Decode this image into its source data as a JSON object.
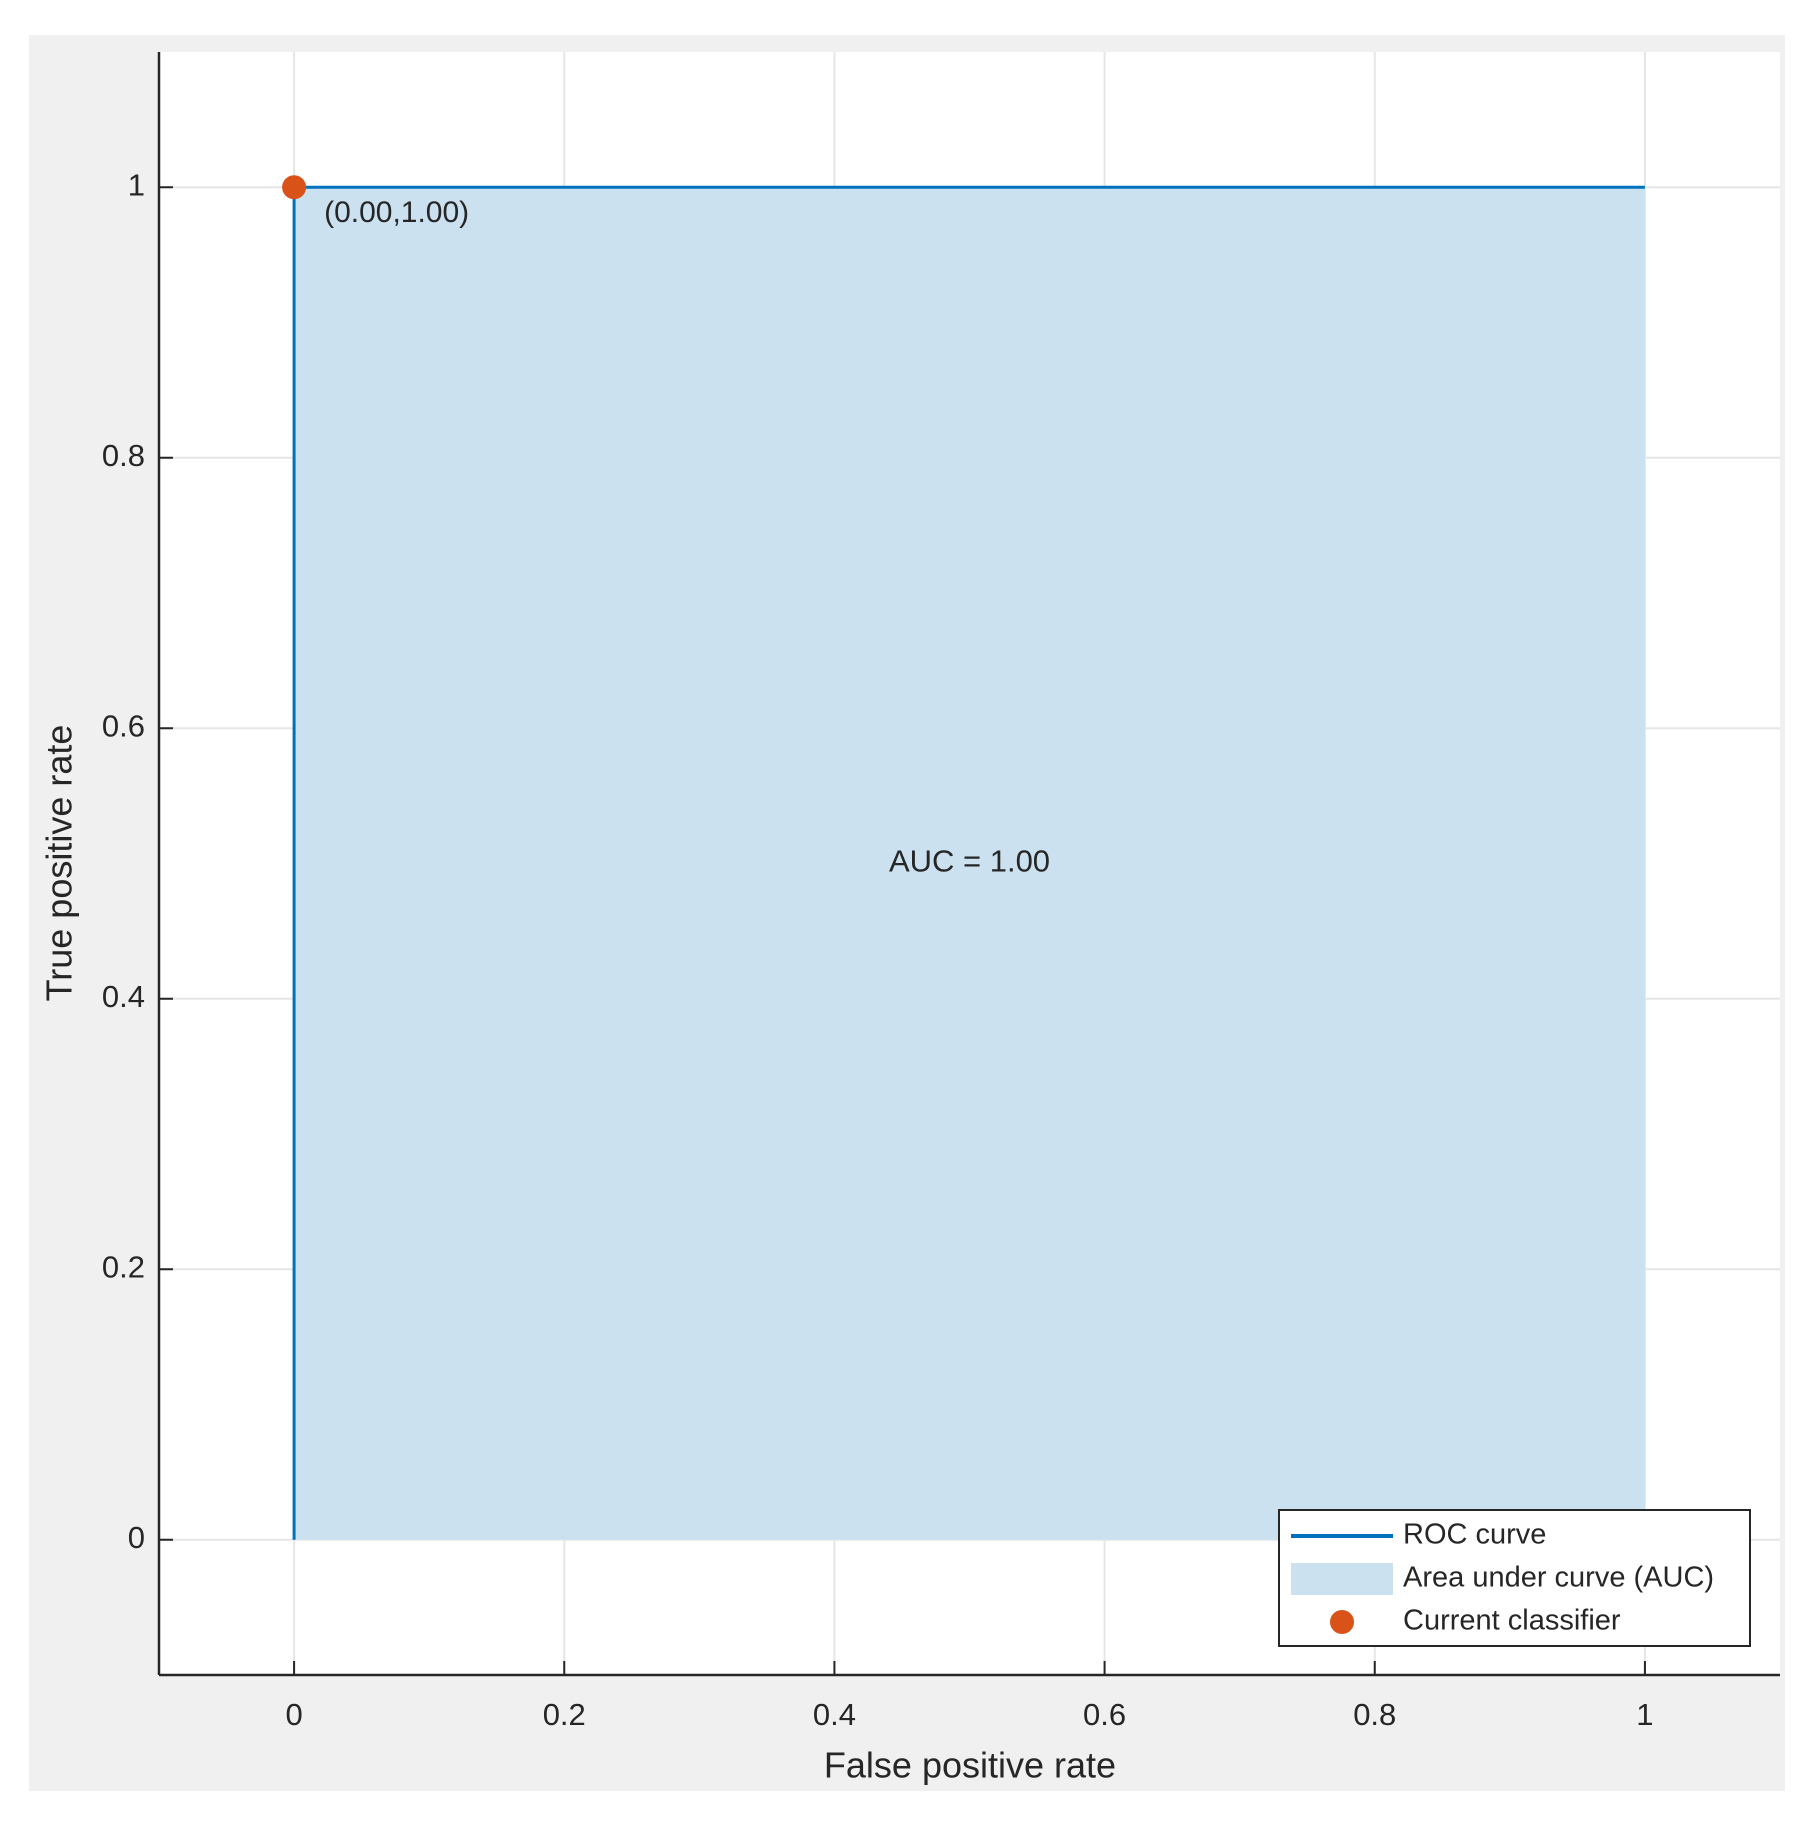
{
  "chart_data": {
    "type": "line",
    "xlabel": "False positive rate",
    "ylabel": "True positive rate",
    "xlim": [
      -0.1,
      1.1
    ],
    "ylim": [
      -0.1,
      1.1
    ],
    "xticks": [
      0,
      0.2,
      0.4,
      0.6,
      0.8,
      1
    ],
    "yticks": [
      0,
      0.2,
      0.4,
      0.6,
      0.8,
      1
    ],
    "grid": true,
    "legend": "southeast",
    "series": [
      {
        "name": "ROC curve",
        "color": "#0072bd",
        "x": [
          0,
          0,
          1
        ],
        "values": [
          0,
          1,
          1
        ]
      },
      {
        "name": "Area under curve (AUC)",
        "color": "#cbe1f0",
        "fill": true,
        "x": [
          0,
          0,
          1
        ],
        "values": [
          0,
          1,
          1
        ]
      },
      {
        "name": "Current classifier",
        "color": "#d95319",
        "marker": "o",
        "x": [
          0
        ],
        "values": [
          1
        ]
      }
    ],
    "annotations": [
      "(0.00,1.00)",
      "AUC = 1.00"
    ]
  }
}
